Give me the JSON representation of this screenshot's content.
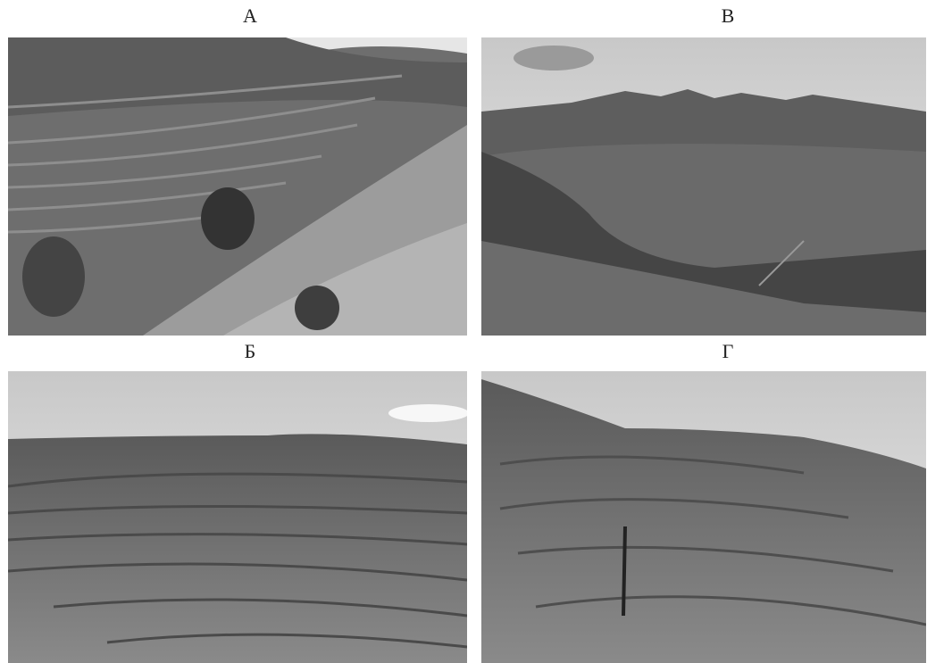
{
  "panels": [
    {
      "label": "А"
    },
    {
      "label": "В"
    },
    {
      "label": "Б"
    },
    {
      "label": "Г"
    }
  ]
}
